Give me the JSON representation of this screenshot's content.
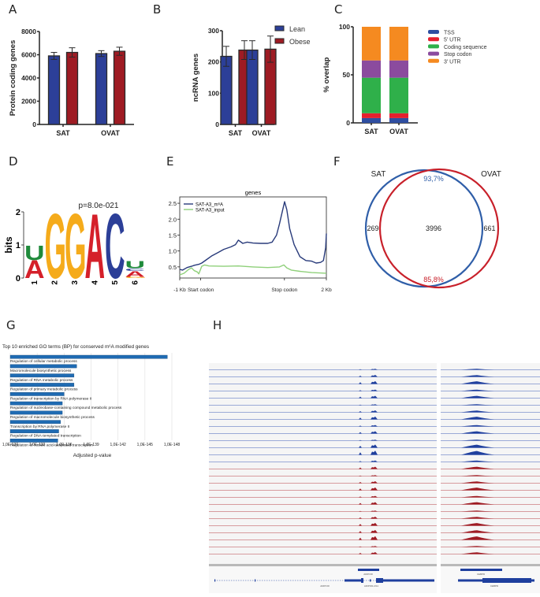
{
  "panels": {
    "A": "A",
    "B": "B",
    "C": "C",
    "D": "D",
    "E": "E",
    "F": "F",
    "G": "G",
    "H": "H"
  },
  "colors": {
    "lean": "#2c3f98",
    "obese": "#9e1b23",
    "tss": "#2f4ea1",
    "utr5": "#e5202e",
    "cds": "#2fb04a",
    "stop": "#8b4b9e",
    "utr3": "#f58a20",
    "motif_A": "#d5202a",
    "motif_C": "#2c3f98",
    "motif_G": "#f5ab1b",
    "motif_U": "#1f8a3b",
    "m6a_line": "#283a7a",
    "input_line": "#8fd07a",
    "venn_sat": "#2f5ea8",
    "venn_ovat": "#c8202a",
    "go_bar": "#1f6bb3",
    "track_blue": "#1f3f9e",
    "track_red": "#9e1b23"
  },
  "chart_data": [
    {
      "id": "A",
      "type": "bar",
      "title": "",
      "xlabel": "",
      "ylabel": "Protein coding genes",
      "categories": [
        "SAT",
        "OVAT"
      ],
      "ylim": [
        0,
        8000
      ],
      "yticks": [
        "0",
        "2000",
        "4000",
        "6000",
        "8000"
      ],
      "ytick_values": [
        0,
        2000,
        4000,
        6000,
        8000
      ],
      "series": [
        {
          "name": "Lean",
          "values": [
            5900,
            6100
          ],
          "errors": [
            300,
            250
          ]
        },
        {
          "name": "Obese",
          "values": [
            6200,
            6300
          ],
          "errors": [
            400,
            350
          ]
        }
      ]
    },
    {
      "id": "B",
      "type": "bar",
      "title": "",
      "xlabel": "",
      "ylabel": "ncRNA genes",
      "categories": [
        "SAT",
        "OVAT"
      ],
      "ylim": [
        0,
        300
      ],
      "yticks": [
        "0",
        "100",
        "200",
        "300"
      ],
      "ytick_values": [
        0,
        100,
        200,
        300
      ],
      "legend": [
        "Lean",
        "Obese"
      ],
      "legend_position": "top-right",
      "series": [
        {
          "name": "Lean",
          "values": [
            218,
            238
          ],
          "errors": [
            32,
            30
          ]
        },
        {
          "name": "Obese",
          "values": [
            238,
            241
          ],
          "errors": [
            30,
            42
          ]
        }
      ]
    },
    {
      "id": "C",
      "type": "bar",
      "stacked": true,
      "ylabel": "% overlap",
      "categories": [
        "SAT",
        "OVAT"
      ],
      "ylim": [
        0,
        100
      ],
      "yticks": [
        "0",
        "50",
        "100"
      ],
      "ytick_values": [
        0,
        50,
        100
      ],
      "legend_position": "right",
      "series": [
        {
          "name": "TSS",
          "values": [
            5,
            5
          ]
        },
        {
          "name": "5' UTR",
          "values": [
            5,
            5
          ]
        },
        {
          "name": "Coding sequence",
          "values": [
            37,
            37
          ]
        },
        {
          "name": "Stop codon",
          "values": [
            18,
            18
          ]
        },
        {
          "name": "3' UTR",
          "values": [
            35,
            35
          ]
        }
      ]
    },
    {
      "id": "D",
      "type": "other",
      "kind": "sequence-logo",
      "ylabel": "bits",
      "ylim": [
        0,
        2
      ],
      "yticks": [
        "0",
        "1",
        "2"
      ],
      "annotation": "p=8.0e-021",
      "positions": [
        "1",
        "2",
        "3",
        "4",
        "5",
        "6"
      ],
      "letters": [
        [
          {
            "l": "A",
            "h": 0.55
          },
          {
            "l": "U",
            "h": 0.45
          }
        ],
        [
          {
            "l": "G",
            "h": 2.0
          }
        ],
        [
          {
            "l": "G",
            "h": 2.0
          }
        ],
        [
          {
            "l": "A",
            "h": 2.0
          }
        ],
        [
          {
            "l": "C",
            "h": 2.0
          }
        ],
        [
          {
            "l": "G",
            "h": 0.04
          },
          {
            "l": "A",
            "h": 0.18
          },
          {
            "l": "C",
            "h": 0.08
          },
          {
            "l": "U",
            "h": 0.22
          }
        ]
      ]
    },
    {
      "id": "E",
      "type": "line",
      "title": "genes",
      "ylim": [
        0.15,
        2.7
      ],
      "yticks": [
        "0.5",
        "1.0",
        "1.5",
        "2.0",
        "2.5"
      ],
      "ytick_values": [
        0.5,
        1.0,
        1.5,
        2.0,
        2.5
      ],
      "xticks": [
        "-1 Kb",
        "Start codon",
        "Stop codon",
        "2 Kb"
      ],
      "xtick_values": [
        0,
        0.143,
        0.714,
        1.0
      ],
      "legend_position": "top-left",
      "series": [
        {
          "name": "SAT-A3_m⁶A",
          "x": [
            0,
            0.02,
            0.05,
            0.08,
            0.1,
            0.13,
            0.15,
            0.18,
            0.22,
            0.26,
            0.3,
            0.35,
            0.38,
            0.4,
            0.43,
            0.46,
            0.5,
            0.55,
            0.6,
            0.63,
            0.66,
            0.68,
            0.7,
            0.715,
            0.73,
            0.75,
            0.78,
            0.82,
            0.86,
            0.9,
            0.93,
            0.96,
            0.98,
            0.995,
            1.0
          ],
          "y": [
            0.42,
            0.4,
            0.48,
            0.52,
            0.55,
            0.58,
            0.62,
            0.72,
            0.85,
            0.95,
            1.05,
            1.13,
            1.2,
            1.34,
            1.24,
            1.28,
            1.25,
            1.24,
            1.24,
            1.28,
            1.5,
            1.85,
            2.25,
            2.55,
            2.3,
            1.7,
            1.2,
            0.82,
            0.7,
            0.68,
            0.62,
            0.64,
            0.7,
            1.1,
            1.55
          ]
        },
        {
          "name": "SAT-A3_input",
          "x": [
            0,
            0.03,
            0.06,
            0.08,
            0.1,
            0.12,
            0.13,
            0.15,
            0.17,
            0.2,
            0.3,
            0.4,
            0.5,
            0.6,
            0.68,
            0.71,
            0.73,
            0.76,
            0.82,
            0.9,
            1.0
          ],
          "y": [
            0.25,
            0.3,
            0.42,
            0.47,
            0.38,
            0.34,
            0.28,
            0.52,
            0.56,
            0.53,
            0.52,
            0.53,
            0.5,
            0.48,
            0.5,
            0.56,
            0.47,
            0.4,
            0.36,
            0.32,
            0.3
          ]
        }
      ]
    },
    {
      "id": "F",
      "type": "other",
      "kind": "venn",
      "sets": [
        "SAT",
        "OVAT"
      ],
      "only_sat": "269",
      "both": "3996",
      "only_ovat": "661",
      "pct_sat": "93,7%",
      "pct_ovat": "85,8%"
    },
    {
      "id": "G",
      "type": "bar",
      "orientation": "horizontal",
      "title": "Top 10 enriched GO terms (BP) for conserved m⁶A modified genes",
      "xlabel": "Adjusted p-value",
      "xlim": [
        -130,
        -148
      ],
      "xticks": [
        "1,0E-130",
        "1,0E-133",
        "1,0E-136",
        "1,0E-139",
        "1,0E-142",
        "1,0E-145",
        "1,0E-148"
      ],
      "xtick_values": [
        -130,
        -133,
        -136,
        -139,
        -142,
        -145,
        -148
      ],
      "grid": true,
      "categories": [
        "Regulation of cellular metabolic process",
        "Macromolecule biosynthetic process",
        "Regulation of RNA metabolic process",
        "Regulation of primary metabolic process",
        "Regulation of transcription by RNA polymerase II",
        "Regulation of nucleobase-containing compound metabolic process",
        "Regulation of macromolecule biosynthetic process",
        "Transcription by RNA polymerase II",
        "Regulation of DNA-templated transcription",
        "Regulation of nucleic acid-templated transcription"
      ],
      "values_log10": [
        -147.5,
        -137.4,
        -137.1,
        -137.1,
        -136.0,
        -135.8,
        -135.8,
        -135.6,
        -135.4,
        -135.3
      ]
    },
    {
      "id": "H",
      "type": "other",
      "kind": "genome-browser",
      "blue_tracks": 14,
      "red_tracks": 13,
      "gene_labels_left": [
        "ADIPOR",
        "ADIPOR",
        "ADIPOR-AS1"
      ],
      "gene_labels_right": [
        "CEBPD",
        "CEBPD"
      ]
    }
  ]
}
